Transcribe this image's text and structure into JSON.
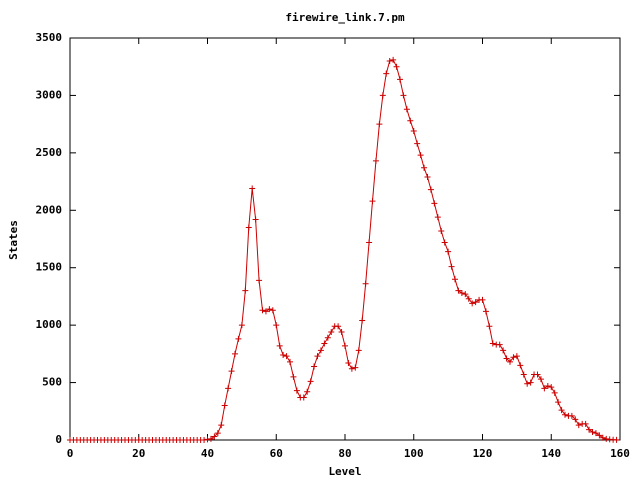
{
  "chart_data": {
    "type": "line",
    "title": "firewire_link.7.pm",
    "x_label": "Level",
    "y_label": "States",
    "x": [
      0,
      1,
      2,
      3,
      4,
      5,
      6,
      7,
      8,
      9,
      10,
      11,
      12,
      13,
      14,
      15,
      16,
      17,
      18,
      19,
      20,
      21,
      22,
      23,
      24,
      25,
      26,
      27,
      28,
      29,
      30,
      31,
      32,
      33,
      34,
      35,
      36,
      37,
      38,
      39,
      40,
      41,
      42,
      43,
      44,
      45,
      46,
      47,
      48,
      49,
      50,
      51,
      52,
      53,
      54,
      55,
      56,
      57,
      58,
      59,
      60,
      61,
      62,
      63,
      64,
      65,
      66,
      67,
      68,
      69,
      70,
      71,
      72,
      73,
      74,
      75,
      76,
      77,
      78,
      79,
      80,
      81,
      82,
      83,
      84,
      85,
      86,
      87,
      88,
      89,
      90,
      91,
      92,
      93,
      94,
      95,
      96,
      97,
      98,
      99,
      100,
      101,
      102,
      103,
      104,
      105,
      106,
      107,
      108,
      109,
      110,
      111,
      112,
      113,
      114,
      115,
      116,
      117,
      118,
      119,
      120,
      121,
      122,
      123,
      124,
      125,
      126,
      127,
      128,
      129,
      130,
      131,
      132,
      133,
      134,
      135,
      136,
      137,
      138,
      139,
      140,
      141,
      142,
      143,
      144,
      145,
      146,
      147,
      148,
      149,
      150,
      151,
      152,
      153,
      154,
      155,
      156,
      157,
      158,
      159
    ],
    "series": [
      {
        "name": "firewire_link.7.pm",
        "color": "#cc0000",
        "values": [
          0,
          0,
          0,
          0,
          0,
          0,
          0,
          0,
          0,
          0,
          0,
          0,
          0,
          0,
          0,
          0,
          0,
          0,
          0,
          0,
          0,
          0,
          0,
          0,
          0,
          0,
          0,
          0,
          0,
          0,
          0,
          0,
          0,
          0,
          0,
          0,
          0,
          0,
          0,
          0,
          5,
          10,
          30,
          60,
          130,
          300,
          450,
          600,
          750,
          880,
          1000,
          1300,
          1850,
          2190,
          1920,
          1390,
          1130,
          1120,
          1140,
          1130,
          1000,
          820,
          740,
          730,
          680,
          550,
          430,
          370,
          370,
          420,
          510,
          640,
          730,
          780,
          840,
          890,
          940,
          990,
          990,
          940,
          820,
          670,
          620,
          630,
          780,
          1040,
          1360,
          1720,
          2080,
          2430,
          2750,
          3000,
          3190,
          3300,
          3310,
          3250,
          3140,
          3000,
          2880,
          2780,
          2690,
          2580,
          2480,
          2370,
          2290,
          2180,
          2060,
          1940,
          1820,
          1720,
          1640,
          1510,
          1400,
          1300,
          1280,
          1270,
          1230,
          1190,
          1200,
          1220,
          1220,
          1120,
          990,
          840,
          830,
          830,
          780,
          710,
          680,
          720,
          730,
          650,
          570,
          490,
          500,
          570,
          570,
          530,
          450,
          470,
          460,
          410,
          330,
          260,
          220,
          210,
          210,
          180,
          130,
          140,
          140,
          90,
          70,
          60,
          40,
          20,
          10,
          5,
          2,
          1
        ]
      }
    ],
    "xlim": [
      0,
      160
    ],
    "xticks": [
      0,
      20,
      40,
      60,
      80,
      100,
      120,
      140,
      160
    ],
    "ylim": [
      0,
      3500
    ],
    "yticks": [
      0,
      500,
      1000,
      1500,
      2000,
      2500,
      3000,
      3500
    ]
  }
}
